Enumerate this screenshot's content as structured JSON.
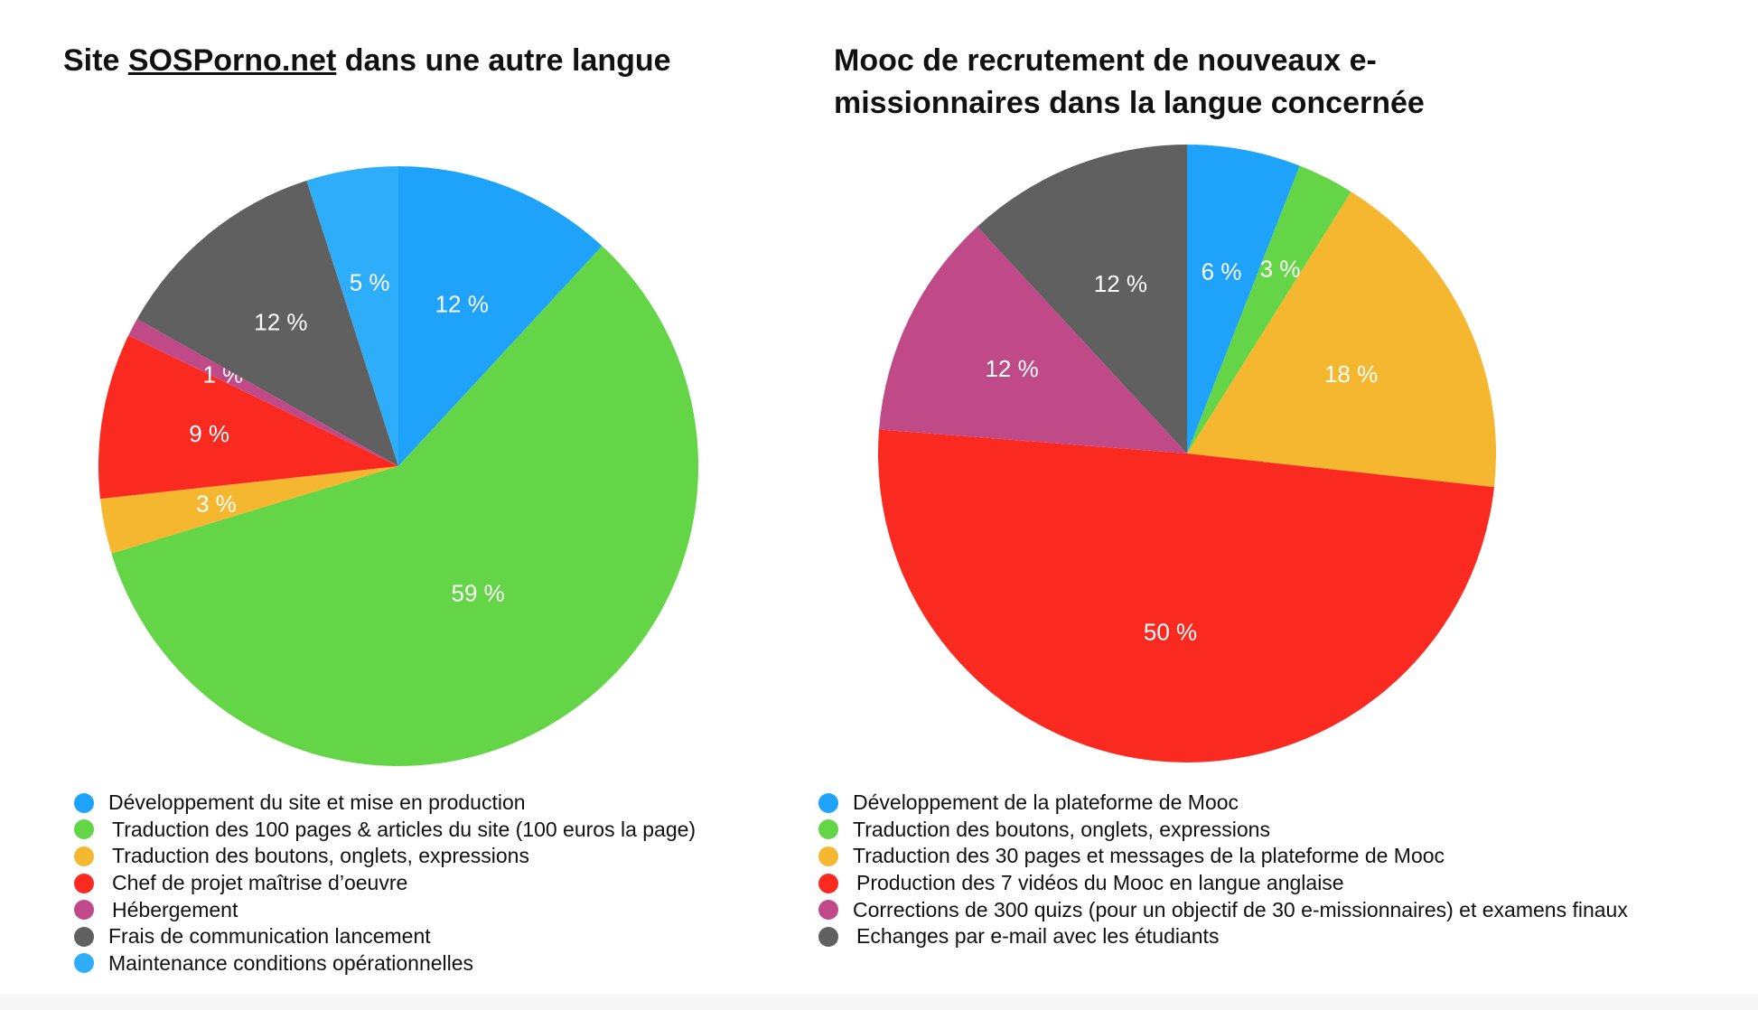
{
  "chart_data": [
    {
      "type": "pie",
      "title": "",
      "title_parts": [
        "Site ",
        "SOSPorno.net",
        " dans une autre langue"
      ],
      "slices": [
        {
          "label": "Développement du site et mise en production",
          "value": 12,
          "color": "#1EA2FA",
          "value_label": "12 %"
        },
        {
          "label": "Traduction des 100 pages & articles du site (100 euros la page)",
          "value": 59,
          "color": "#63D547",
          "value_label": "59 %"
        },
        {
          "label": "Traduction des boutons, onglets, expressions",
          "value": 3,
          "color": "#F6B730",
          "value_label": "3 %"
        },
        {
          "label": "Chef de projet maîtrise d’oeuvre",
          "value": 9,
          "color": "#FB2A21",
          "value_label": "9 %"
        },
        {
          "label": "Hébergement",
          "value": 1,
          "color": "#BF4A87",
          "value_label": "1 %"
        },
        {
          "label": "Frais de communication lancement",
          "value": 12,
          "color": "#606060",
          "value_label": "12 %"
        },
        {
          "label": "Maintenance conditions opérationnelles",
          "value": 5,
          "color": "#2EAEFA",
          "value_label": "5 %"
        }
      ],
      "legend_order": [
        0,
        1,
        2,
        3,
        4,
        5,
        6
      ],
      "legend_position": "bottom"
    },
    {
      "type": "pie",
      "title": "Mooc de recrutement de nouveaux e-missionnaires dans la langue concernée",
      "title_lines": [
        "Mooc de recrutement de nouveaux e-",
        "missionnaires dans la langue concernée"
      ],
      "slices": [
        {
          "label": "Développement de la plateforme de Mooc",
          "value": 6,
          "color": "#1EA2FA",
          "value_label": "6 %"
        },
        {
          "label": "Traduction des boutons, onglets, expressions",
          "value": 3,
          "color": "#63D547",
          "value_label": "3 %"
        },
        {
          "label": "Traduction des 30 pages et messages de la plateforme de Mooc",
          "value": 18,
          "color": "#F6B730",
          "value_label": "18 %"
        },
        {
          "label": "Production des 7 vidéos du Mooc en langue anglaise",
          "value": 50,
          "color": "#FB2A21",
          "value_label": "50 %"
        },
        {
          "label": "Corrections de 300 quizs (pour un objectif de 30 e-missionnaires) et examens finaux",
          "value": 12,
          "color": "#BF4A87",
          "value_label": "12 %"
        },
        {
          "label": "Echanges par e-mail avec les étudiants",
          "value": 12,
          "color": "#606060",
          "value_label": "12 %"
        }
      ],
      "legend_position": "bottom"
    }
  ]
}
